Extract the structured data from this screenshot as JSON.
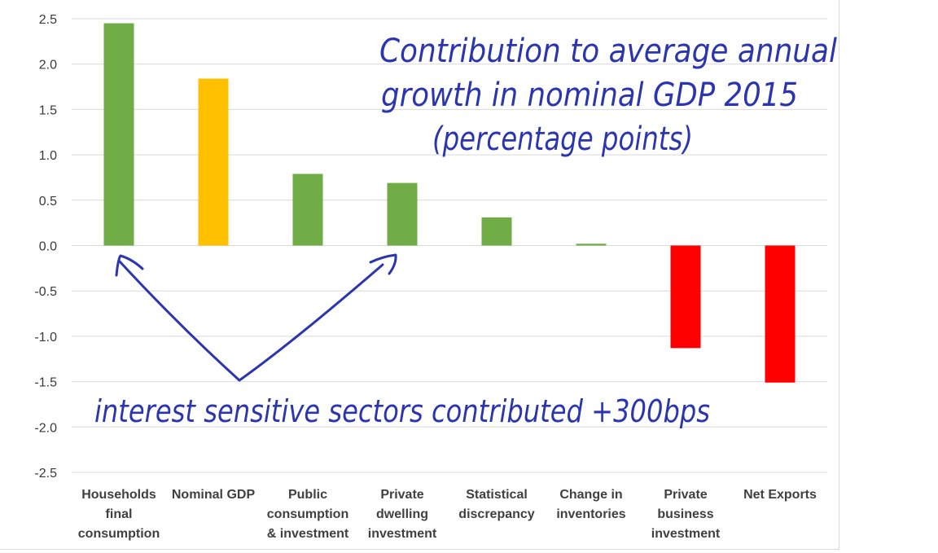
{
  "chart_data": {
    "type": "bar",
    "categories": [
      [
        "Households",
        "final",
        "consumption"
      ],
      [
        "Nominal GDP"
      ],
      [
        "Public",
        "consumption",
        "& investment"
      ],
      [
        "Private",
        "dwelling",
        "investment"
      ],
      [
        "Statistical",
        "discrepancy"
      ],
      [
        "Change in",
        "inventories"
      ],
      [
        "Private",
        "business",
        "investment"
      ],
      [
        "Net Exports"
      ]
    ],
    "values": [
      2.45,
      1.84,
      0.79,
      0.69,
      0.31,
      0.02,
      -1.13,
      -1.51
    ],
    "colors": [
      "#70ad47",
      "#ffc000",
      "#70ad47",
      "#70ad47",
      "#70ad47",
      "#70ad47",
      "#ff0000",
      "#ff0000"
    ],
    "ylim": [
      -2.5,
      2.5
    ],
    "yticks": [
      "2.5",
      "2.0",
      "1.5",
      "1.0",
      "0.5",
      "0.0",
      "-0.5",
      "-1.0",
      "-1.5",
      "-2.0",
      "-2.5"
    ],
    "grid": true,
    "annotations": {
      "title_lines": [
        "Contribution to average annual",
        "growth in nominal GDP 2015",
        "(percentage points)"
      ],
      "note": "interest sensitive sectors contributed +300bps"
    }
  }
}
